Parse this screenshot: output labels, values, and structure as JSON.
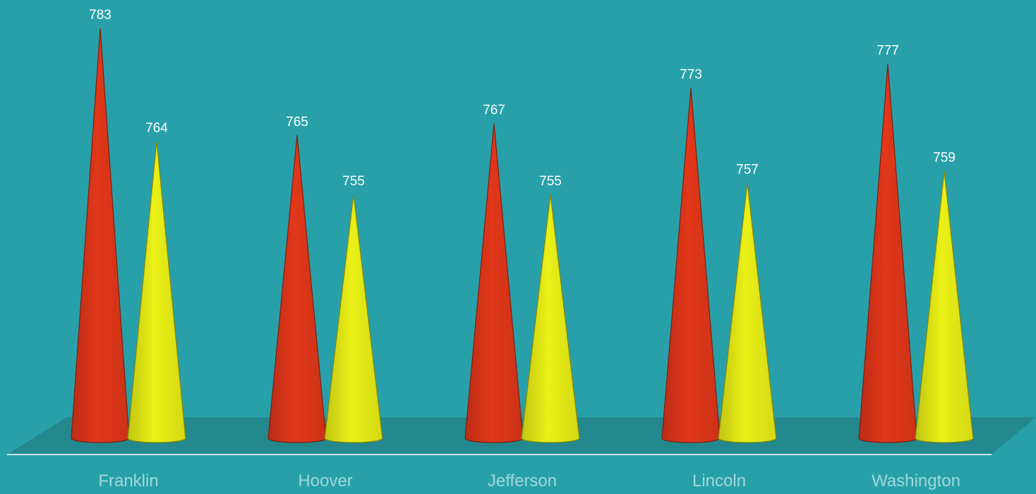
{
  "chart_data": {
    "type": "bar",
    "style": "3d-cone",
    "categories": [
      "Franklin",
      "Hoover",
      "Jefferson",
      "Lincoln",
      "Washington"
    ],
    "series": [
      {
        "values": [
          783,
          765,
          767,
          773,
          777
        ],
        "color": "#e2371a"
      },
      {
        "values": [
          764,
          755,
          755,
          757,
          759
        ],
        "color": "#eaf016"
      }
    ],
    "ylim": [
      714,
      785
    ],
    "grid": false,
    "legend": "none",
    "data_labels": true,
    "colors": {
      "background": "#28a0aa",
      "floor": "#23898f",
      "label": "#ffffff",
      "category_label": "#9fd8dc"
    }
  }
}
